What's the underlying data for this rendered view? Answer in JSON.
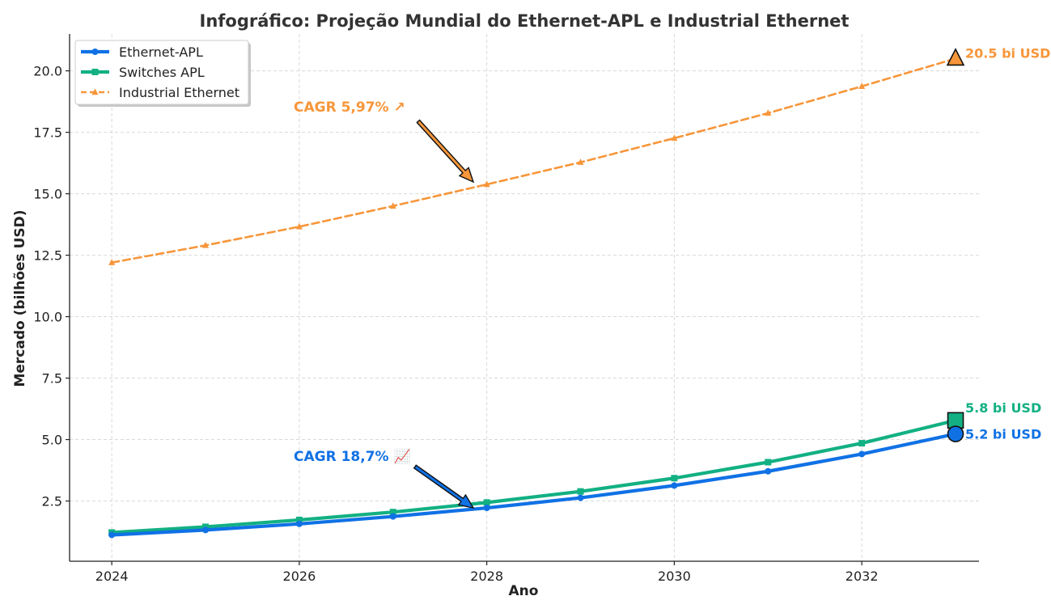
{
  "chart_data": {
    "type": "line",
    "title": "Infográfico: Projeção Mundial do Ethernet-APL e Industrial Ethernet",
    "xlabel": "Ano",
    "ylabel": "Mercado (bilhões USD)",
    "xlim": [
      2023.55,
      2033.25
    ],
    "ylim": [
      0.05,
      21.5
    ],
    "x": [
      2024,
      2025,
      2026,
      2027,
      2028,
      2029,
      2030,
      2031,
      2032,
      2033
    ],
    "x_ticks": [
      2024,
      2026,
      2028,
      2030,
      2032
    ],
    "y_ticks": [
      2.5,
      5.0,
      7.5,
      10.0,
      12.5,
      15.0,
      17.5,
      20.0
    ],
    "grid": true,
    "legend_position": "top-left",
    "series": [
      {
        "name": "Ethernet-APL",
        "color": "#1071e5",
        "marker": "circle",
        "line_style": "solid",
        "values": [
          1.12,
          1.32,
          1.57,
          1.87,
          2.22,
          2.63,
          3.13,
          3.71,
          4.41,
          5.23
        ],
        "end_label": "5.2 bi USD"
      },
      {
        "name": "Switches APL",
        "color": "#12b083",
        "marker": "square",
        "line_style": "solid",
        "values": [
          1.22,
          1.45,
          1.73,
          2.05,
          2.44,
          2.89,
          3.43,
          4.08,
          4.85,
          5.78
        ],
        "end_label": "5.8 bi USD"
      },
      {
        "name": "Industrial Ethernet",
        "color": "#f7963a",
        "marker": "triangle",
        "line_style": "dashed",
        "values": [
          12.2,
          12.9,
          13.66,
          14.5,
          15.38,
          16.28,
          17.26,
          18.28,
          19.37,
          20.5
        ],
        "end_label": "20.5 bi USD"
      }
    ],
    "annotations": [
      {
        "text": "CAGR 5,97% ↗",
        "color": "#f7963a",
        "series": "Industrial Ethernet",
        "point_x": 2028,
        "point_y": 15.4
      },
      {
        "text": "CAGR 18,7% 📈",
        "color": "#1071e5",
        "series": "Ethernet-APL",
        "point_x": 2028,
        "point_y": 2.25
      }
    ]
  }
}
